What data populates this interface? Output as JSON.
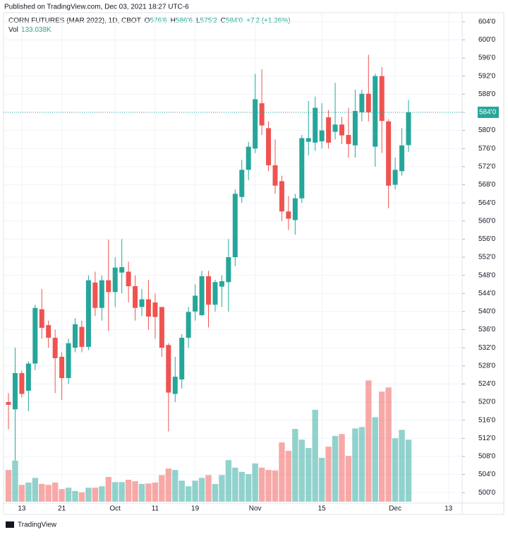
{
  "header": {
    "published": "Published on TradingView.com, Dec 03, 2021 18:27 UTC-6",
    "brand": "TradingView"
  },
  "chart_data": {
    "type": "candlestick",
    "title": "CORN FUTURES (MAR 2022), 1D, CBOT",
    "ohlc_legend": [
      "O",
      "576'6",
      "H",
      "586'6",
      "L",
      "575'2",
      "C",
      "584'0"
    ],
    "change": "+7'2 (+1.26%)",
    "volume_label": "Vol",
    "volume_value": "133.038K",
    "last_price": {
      "value": 584,
      "label": "584'0"
    },
    "up_color": "#26a69a",
    "down_color": "#ef5350",
    "categories": [
      null,
      null,
      "13",
      null,
      null,
      null,
      null,
      null,
      "21",
      null,
      null,
      null,
      null,
      null,
      null,
      null,
      "Oct",
      null,
      null,
      null,
      null,
      null,
      "11",
      null,
      null,
      null,
      null,
      null,
      "19",
      null,
      null,
      null,
      null,
      null,
      null,
      null,
      null,
      "Nov",
      null,
      null,
      null,
      null,
      null,
      null,
      null,
      null,
      null,
      "15",
      null,
      null,
      null,
      null,
      null,
      null,
      null,
      null,
      null,
      null,
      "Dec",
      null,
      null,
      null,
      null,
      null,
      null,
      null,
      "13"
    ],
    "open": [
      520,
      518.4,
      526.4,
      522.5,
      528.5,
      540.5,
      537,
      534.2,
      530,
      525.3,
      532,
      536.6,
      532.2,
      546.4,
      540.8,
      546.9,
      544.3,
      548.6,
      548.8,
      545.6,
      541,
      542.7,
      542,
      541,
      532.6,
      521.8,
      525,
      534.2,
      540,
      539.2,
      547.8,
      541.5,
      545.5,
      546.5,
      552,
      565.3,
      571.3,
      576,
      586,
      580.5,
      572.3,
      568.8,
      562.1,
      560.2,
      565,
      577.5,
      577.3,
      577.6,
      582.9,
      579.7,
      581.3,
      579,
      576.7,
      584,
      588.1,
      576.4,
      592,
      582,
      568,
      571,
      576.75,
      null,
      null,
      null,
      null,
      null,
      null
    ],
    "high": [
      522,
      532,
      527,
      529,
      541.5,
      545,
      538,
      536,
      531,
      534,
      538.5,
      538,
      548,
      548.8,
      548,
      555.9,
      552,
      556,
      551,
      548,
      545,
      547,
      544,
      541,
      533,
      530,
      535,
      541,
      546,
      549,
      549,
      547,
      548,
      556,
      567,
      573.5,
      577.5,
      592.5,
      593.5,
      582,
      578,
      570,
      565.5,
      566,
      579,
      586.5,
      587.5,
      586,
      584.5,
      590.5,
      583,
      585,
      589,
      589,
      596.7,
      592.5,
      594,
      582.5,
      574,
      580.5,
      586.75,
      null,
      null,
      null,
      null,
      null,
      null
    ],
    "low": [
      514,
      507,
      521,
      518,
      527,
      534,
      532,
      522,
      520.5,
      524,
      531,
      531,
      531.5,
      539,
      538,
      535.7,
      541,
      544,
      542,
      538,
      539,
      536,
      534,
      530,
      513.5,
      520,
      523,
      532,
      538,
      539,
      536.5,
      540,
      541,
      540,
      550,
      564,
      569,
      575,
      579,
      571,
      566,
      560,
      558,
      557,
      564,
      574.5,
      575.5,
      576,
      576,
      578,
      577,
      574,
      574,
      582,
      582,
      572,
      575,
      562.8,
      567,
      570,
      575.25,
      null,
      null,
      null,
      null,
      null,
      null
    ],
    "close": [
      519.4,
      526.4,
      521.8,
      528.5,
      540.8,
      536.4,
      534.2,
      529.7,
      525.3,
      533,
      537.2,
      532.2,
      546.9,
      540.8,
      546.9,
      544.3,
      549.7,
      549.8,
      545.6,
      540.8,
      542.7,
      538.9,
      538.8,
      532,
      522.1,
      525.6,
      534.2,
      539.9,
      543.5,
      547.8,
      541.5,
      546.5,
      546.7,
      552,
      566,
      571.3,
      576.4,
      586.9,
      581.1,
      572.3,
      567.8,
      562.1,
      560.5,
      565,
      578.3,
      578.3,
      585,
      580,
      577.3,
      581.3,
      578.9,
      577,
      584.3,
      588.1,
      584,
      592,
      582.1,
      567.8,
      571.3,
      576.7,
      584,
      null,
      null,
      null,
      null,
      null,
      null
    ],
    "volume": [
      68,
      88,
      36,
      41,
      51,
      38,
      36,
      41,
      27,
      30,
      23,
      20,
      30,
      30,
      33,
      53,
      42,
      42,
      47,
      44,
      38,
      39,
      41,
      57,
      71,
      68,
      45,
      33,
      45,
      51,
      57,
      38,
      57,
      89,
      73,
      64,
      59,
      82,
      73,
      68,
      67,
      127,
      109,
      156,
      133,
      115,
      197,
      94,
      118,
      141,
      145,
      98,
      157,
      160,
      260,
      181,
      236,
      245,
      136,
      154,
      133,
      null,
      null,
      null,
      null,
      null,
      null
    ],
    "vlim": [
      0,
      300
    ],
    "ylim": [
      498,
      606
    ],
    "yticks": [
      {
        "value": 500,
        "label": "500'0"
      },
      {
        "value": 504,
        "label": "504'0"
      },
      {
        "value": 508,
        "label": "508'0"
      },
      {
        "value": 512,
        "label": "512'0"
      },
      {
        "value": 516,
        "label": "516'0"
      },
      {
        "value": 520,
        "label": "520'0"
      },
      {
        "value": 524,
        "label": "524'0"
      },
      {
        "value": 528,
        "label": "528'0"
      },
      {
        "value": 532,
        "label": "532'0"
      },
      {
        "value": 536,
        "label": "536'0"
      },
      {
        "value": 540,
        "label": "540'0"
      },
      {
        "value": 544,
        "label": "544'0"
      },
      {
        "value": 548,
        "label": "548'0"
      },
      {
        "value": 552,
        "label": "552'0"
      },
      {
        "value": 556,
        "label": "556'0"
      },
      {
        "value": 560,
        "label": "560'0"
      },
      {
        "value": 564,
        "label": "564'0"
      },
      {
        "value": 568,
        "label": "568'0"
      },
      {
        "value": 572,
        "label": "572'0"
      },
      {
        "value": 576,
        "label": "576'0"
      },
      {
        "value": 580,
        "label": "580'0"
      },
      {
        "value": 584,
        "label": "584'0"
      },
      {
        "value": 588,
        "label": "588'0"
      },
      {
        "value": 592,
        "label": "592'0"
      },
      {
        "value": 596,
        "label": "596'0"
      },
      {
        "value": 600,
        "label": "600'0"
      },
      {
        "value": 604,
        "label": "604'0"
      }
    ],
    "grid": true
  }
}
